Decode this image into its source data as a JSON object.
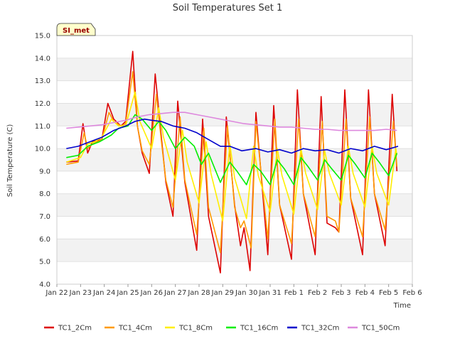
{
  "chart_data": {
    "type": "line",
    "title": "Soil Temperatures Set 1",
    "xlabel": "Time",
    "ylabel": "Soil Temperature (C)",
    "ylim": [
      4.0,
      15.0
    ],
    "xlim": [
      0,
      15
    ],
    "grid": "horizontal bands",
    "legend_position": "bottom",
    "badge": "SI_met",
    "x_tick_labels": [
      "Jan 22",
      "Jan 23",
      "Jan 24",
      "Jan 25",
      "Jan 26",
      "Jan 27",
      "Jan 28",
      "Jan 29",
      "Jan 30",
      "Jan 31",
      "Feb 1",
      "Feb 2",
      "Feb 3",
      "Feb 4",
      "Feb 5",
      "Feb 6"
    ],
    "y_ticks": [
      4.0,
      5.0,
      6.0,
      7.0,
      8.0,
      9.0,
      10.0,
      11.0,
      12.0,
      13.0,
      14.0,
      15.0
    ],
    "x_note": "x values are days after Jan 22 00:00",
    "series": [
      {
        "name": "TC1_2Cm",
        "color": "#dd0000",
        "x": [
          0.4,
          0.9,
          1.1,
          1.3,
          1.5,
          1.9,
          2.15,
          2.4,
          2.7,
          2.9,
          3.2,
          3.4,
          3.6,
          3.9,
          4.15,
          4.4,
          4.6,
          4.9,
          5.1,
          5.4,
          5.9,
          6.15,
          6.4,
          6.9,
          7.15,
          7.5,
          7.75,
          7.9,
          8.15,
          8.4,
          8.9,
          9.15,
          9.4,
          9.9,
          10.15,
          10.4,
          10.9,
          11.15,
          11.4,
          11.75,
          11.9,
          12.15,
          12.4,
          12.9,
          13.15,
          13.4,
          13.85,
          14.15,
          14.35
        ],
        "y": [
          9.4,
          9.45,
          11.1,
          9.8,
          10.3,
          10.4,
          12.0,
          11.3,
          11.0,
          11.2,
          14.3,
          11.0,
          9.8,
          8.9,
          13.3,
          10.6,
          8.5,
          7.0,
          12.1,
          8.5,
          5.5,
          11.3,
          7.0,
          4.5,
          11.4,
          7.5,
          5.7,
          6.5,
          4.6,
          11.6,
          5.3,
          11.9,
          7.5,
          5.1,
          12.6,
          8.0,
          5.3,
          12.3,
          6.7,
          6.5,
          6.3,
          12.6,
          7.8,
          5.3,
          12.6,
          8.0,
          5.7,
          12.4,
          9.0
        ]
      },
      {
        "name": "TC1_4Cm",
        "color": "#ff9900",
        "x": [
          0.4,
          0.9,
          1.15,
          1.3,
          1.5,
          1.9,
          2.2,
          2.4,
          2.7,
          2.9,
          3.2,
          3.4,
          3.6,
          3.9,
          4.2,
          4.4,
          4.6,
          4.9,
          5.2,
          5.4,
          5.9,
          6.2,
          6.4,
          6.9,
          7.2,
          7.5,
          7.75,
          7.9,
          8.2,
          8.4,
          8.9,
          9.2,
          9.4,
          9.9,
          10.2,
          10.4,
          10.9,
          11.2,
          11.4,
          11.75,
          11.9,
          12.2,
          12.4,
          12.9,
          13.2,
          13.4,
          13.85,
          14.2,
          14.35
        ],
        "y": [
          9.3,
          9.4,
          10.7,
          10.0,
          10.2,
          10.4,
          11.6,
          11.2,
          11.0,
          11.1,
          13.4,
          11.0,
          9.9,
          9.3,
          12.4,
          10.4,
          8.6,
          7.4,
          11.4,
          8.6,
          6.2,
          10.9,
          7.4,
          5.4,
          11.0,
          7.4,
          6.5,
          6.8,
          5.6,
          11.2,
          6.0,
          11.3,
          7.5,
          5.8,
          11.3,
          8.0,
          6.1,
          11.2,
          7.0,
          6.8,
          6.3,
          11.3,
          7.8,
          6.1,
          11.4,
          8.0,
          6.4,
          11.2,
          9.2
        ]
      },
      {
        "name": "TC1_8Cm",
        "color": "#ffee00",
        "x": [
          0.4,
          1.0,
          1.3,
          1.6,
          1.9,
          2.3,
          2.6,
          2.9,
          3.3,
          3.5,
          4.0,
          4.3,
          4.5,
          5.0,
          5.3,
          5.5,
          6.0,
          6.3,
          6.5,
          7.0,
          7.3,
          7.5,
          8.0,
          8.3,
          8.5,
          9.0,
          9.3,
          9.5,
          10.0,
          10.3,
          10.5,
          11.0,
          11.3,
          11.5,
          12.0,
          12.3,
          12.5,
          13.0,
          13.3,
          13.5,
          14.0,
          14.3,
          14.35
        ],
        "y": [
          9.4,
          9.6,
          10.2,
          10.3,
          10.5,
          11.3,
          11.0,
          11.0,
          12.5,
          11.2,
          10.0,
          11.8,
          10.5,
          8.6,
          10.8,
          9.4,
          7.6,
          10.3,
          8.9,
          6.8,
          10.2,
          8.7,
          6.9,
          10.1,
          8.8,
          7.2,
          10.0,
          8.8,
          7.1,
          10.0,
          8.9,
          7.3,
          9.9,
          8.9,
          7.5,
          10.1,
          8.9,
          7.4,
          10.1,
          8.9,
          7.5,
          10.0,
          9.7
        ]
      },
      {
        "name": "TC1_16Cm",
        "color": "#00ee00",
        "x": [
          0.4,
          0.9,
          1.3,
          1.8,
          2.3,
          2.6,
          3.0,
          3.3,
          3.6,
          4.0,
          4.3,
          4.6,
          5.0,
          5.4,
          5.8,
          6.1,
          6.4,
          6.9,
          7.3,
          7.6,
          8.0,
          8.3,
          8.6,
          9.0,
          9.3,
          9.6,
          10.0,
          10.3,
          10.6,
          11.0,
          11.3,
          11.6,
          12.0,
          12.3,
          12.6,
          13.0,
          13.3,
          13.6,
          14.0,
          14.35
        ],
        "y": [
          9.6,
          9.7,
          10.1,
          10.3,
          10.6,
          10.9,
          11.0,
          11.5,
          11.3,
          10.8,
          11.2,
          10.8,
          10.0,
          10.5,
          10.1,
          9.3,
          9.8,
          8.5,
          9.4,
          9.0,
          8.4,
          9.3,
          9.0,
          8.4,
          9.5,
          9.1,
          8.4,
          9.6,
          9.2,
          8.6,
          9.5,
          9.1,
          8.6,
          9.7,
          9.3,
          8.7,
          9.8,
          9.4,
          8.8,
          9.8
        ]
      },
      {
        "name": "TC1_32Cm",
        "color": "#0000cc",
        "x": [
          0.4,
          0.9,
          1.4,
          1.9,
          2.4,
          2.9,
          3.3,
          3.7,
          4.0,
          4.4,
          4.9,
          5.4,
          5.9,
          6.4,
          6.9,
          7.3,
          7.8,
          8.4,
          8.9,
          9.4,
          9.9,
          10.4,
          10.9,
          11.4,
          11.9,
          12.4,
          12.9,
          13.4,
          13.9,
          14.4
        ],
        "y": [
          10.0,
          10.1,
          10.3,
          10.5,
          10.8,
          11.0,
          11.2,
          11.3,
          11.25,
          11.2,
          11.0,
          10.9,
          10.7,
          10.4,
          10.1,
          10.1,
          9.9,
          10.0,
          9.85,
          9.95,
          9.8,
          10.0,
          9.9,
          9.95,
          9.8,
          10.0,
          9.9,
          10.1,
          9.95,
          10.1
        ]
      },
      {
        "name": "TC1_50Cm",
        "color": "#dd88dd",
        "x": [
          0.4,
          0.9,
          1.4,
          1.9,
          2.4,
          2.9,
          3.4,
          3.9,
          4.4,
          4.9,
          5.4,
          5.9,
          6.4,
          6.9,
          7.4,
          7.9,
          8.4,
          8.9,
          9.4,
          9.9,
          10.4,
          10.9,
          11.4,
          11.9,
          12.4,
          12.9,
          13.4,
          13.9,
          14.35
        ],
        "y": [
          10.9,
          10.95,
          11.0,
          11.05,
          11.15,
          11.25,
          11.4,
          11.5,
          11.55,
          11.6,
          11.6,
          11.5,
          11.4,
          11.3,
          11.2,
          11.1,
          11.05,
          11.0,
          10.95,
          10.95,
          10.9,
          10.85,
          10.85,
          10.8,
          10.8,
          10.8,
          10.8,
          10.85,
          10.8
        ]
      }
    ]
  }
}
